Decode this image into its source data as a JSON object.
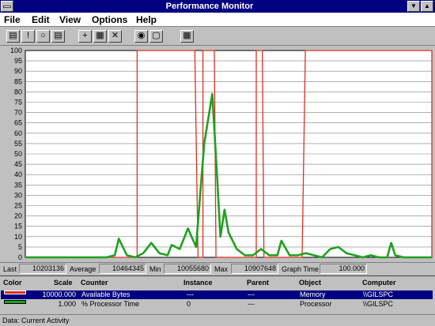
{
  "window": {
    "title": "Performance Monitor"
  },
  "menu": [
    "File",
    "Edit",
    "View",
    "Options",
    "Help"
  ],
  "toolbar": {
    "buttons": [
      {
        "icon": "chart-view-icon"
      },
      {
        "icon": "alert-view-icon"
      },
      {
        "icon": "log-view-icon"
      },
      {
        "icon": "report-view-icon"
      },
      {
        "icon": "add-counter-icon"
      },
      {
        "icon": "edit-counter-icon"
      },
      {
        "icon": "delete-counter-icon"
      },
      {
        "icon": "update-now-icon"
      },
      {
        "icon": "bookmark-icon"
      },
      {
        "icon": "options-icon"
      }
    ]
  },
  "chart_data": {
    "type": "line",
    "ylim": [
      0,
      100
    ],
    "yticks": [
      0,
      5,
      10,
      15,
      20,
      25,
      30,
      35,
      40,
      45,
      50,
      55,
      60,
      65,
      70,
      75,
      80,
      85,
      90,
      95,
      100
    ],
    "xlim": [
      0,
      100
    ],
    "series": [
      {
        "name": "Available Bytes",
        "color": "#e03020",
        "x": [
          0,
          27.5,
          27.5,
          41.7,
          42.5,
          43.7,
          43.7,
          46.5,
          46.9,
          56.8,
          56.8,
          58.3,
          58.7,
          68.1,
          68.9,
          100,
          100
        ],
        "y": [
          0,
          0,
          100,
          100,
          0,
          0,
          100,
          100,
          0,
          0,
          100,
          100,
          0,
          0,
          100,
          100,
          0
        ]
      },
      {
        "name": "% Processor Time",
        "color": "#20a020",
        "x": [
          0,
          5,
          10,
          15,
          20,
          22,
          23,
          25,
          27,
          29,
          31,
          33,
          35,
          36,
          38,
          40,
          42,
          44,
          46,
          47,
          48,
          49,
          50,
          52,
          54,
          56,
          58,
          60,
          62,
          63,
          65,
          67,
          69,
          71,
          73,
          75,
          77,
          79,
          81,
          83,
          85,
          87,
          89,
          90,
          91,
          93,
          95,
          97,
          100
        ],
        "y": [
          0,
          0,
          0,
          0,
          0,
          1,
          9,
          1,
          0,
          2,
          7,
          2,
          1,
          6,
          4,
          14,
          5,
          55,
          79,
          45,
          10,
          23,
          12,
          4,
          1,
          1,
          4,
          1,
          1,
          8,
          1,
          1,
          2,
          1,
          0,
          4,
          5,
          2,
          1,
          0,
          1,
          0,
          0,
          7,
          1,
          0,
          0,
          0,
          0
        ]
      }
    ]
  },
  "stats": {
    "last_label": "Last",
    "last": "10203136",
    "average_label": "Average",
    "average": "10464345",
    "min_label": "Min",
    "min": "10055680",
    "max_label": "Max",
    "max": "10907648",
    "graph_time_label": "Graph Time",
    "graph_time": "100.000"
  },
  "legend": {
    "headers": {
      "color": "Color",
      "scale": "Scale",
      "counter": "Counter",
      "instance": "Instance",
      "parent": "Parent",
      "object": "Object",
      "computer": "Computer"
    },
    "rows": [
      {
        "color": "#e03020",
        "scale": "10000.000",
        "counter": "Available Bytes",
        "instance": "---",
        "parent": "---",
        "object": "Memory",
        "computer": "\\\\GILSPC",
        "selected": true
      },
      {
        "color": "#20a020",
        "scale": "1.000",
        "counter": "% Processor Time",
        "instance": "0",
        "parent": "---",
        "object": "Processor",
        "computer": "\\\\GILSPC",
        "selected": false
      }
    ]
  },
  "status": {
    "text": "Data: Current Activity"
  }
}
